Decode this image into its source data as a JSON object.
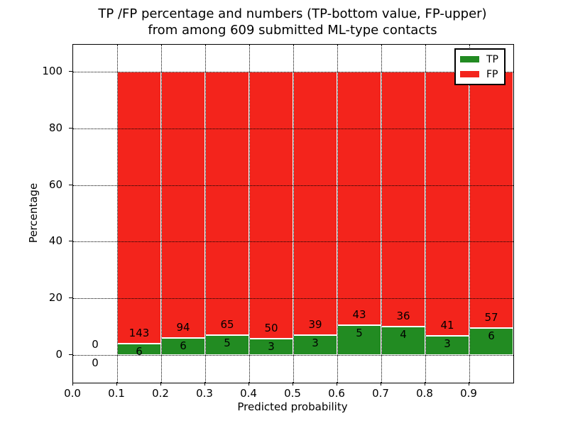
{
  "figure": {
    "title_line1": "TP /FP percentage and numbers (TP-bottom value, FP-upper)",
    "title_line2": "from among 609 submitted ML-type contacts",
    "xlabel": "Predicted probability",
    "ylabel": "Percentage"
  },
  "legend": {
    "items": [
      {
        "label": "TP",
        "color": "#228b22"
      },
      {
        "label": "FP",
        "color": "#f3241c"
      }
    ]
  },
  "colors": {
    "tp": "#228b22",
    "fp": "#f3241c",
    "bar_edge": "#ffffff",
    "grid": "#000000",
    "text": "#000000",
    "background": "#ffffff"
  },
  "chart_data": {
    "type": "bar",
    "stacked": true,
    "title": "TP /FP percentage and numbers (TP-bottom value, FP-upper) from among 609 submitted ML-type contacts",
    "xlabel": "Predicted probability",
    "ylabel": "Percentage",
    "xlim": [
      0.0,
      1.0
    ],
    "ylim": [
      -10,
      110
    ],
    "grid": true,
    "grid_style": "dotted",
    "legend_position": "upper right",
    "x_tick_labels": [
      "0.0",
      "0.1",
      "0.2",
      "0.3",
      "0.4",
      "0.5",
      "0.6",
      "0.7",
      "0.8",
      "0.9"
    ],
    "x_tick_positions": [
      0.0,
      0.1,
      0.2,
      0.3,
      0.4,
      0.5,
      0.6,
      0.7,
      0.8,
      0.9
    ],
    "y_ticks": [
      0,
      20,
      40,
      60,
      80,
      100
    ],
    "total_contacts": 609,
    "series": [
      {
        "name": "TP",
        "color": "#228b22",
        "counts": [
          0,
          6,
          6,
          5,
          3,
          3,
          5,
          4,
          3,
          6
        ]
      },
      {
        "name": "FP",
        "color": "#f3241c",
        "counts": [
          0,
          143,
          94,
          65,
          50,
          39,
          43,
          36,
          41,
          57
        ]
      }
    ],
    "bins": [
      {
        "x_range": [
          0.0,
          0.1
        ],
        "tp": 0,
        "fp": 0,
        "tp_pct": 0,
        "fp_pct": 0
      },
      {
        "x_range": [
          0.1,
          0.2
        ],
        "tp": 6,
        "fp": 143,
        "tp_pct": 4.03,
        "fp_pct": 95.97
      },
      {
        "x_range": [
          0.2,
          0.3
        ],
        "tp": 6,
        "fp": 94,
        "tp_pct": 6.0,
        "fp_pct": 94.0
      },
      {
        "x_range": [
          0.3,
          0.4
        ],
        "tp": 5,
        "fp": 65,
        "tp_pct": 7.14,
        "fp_pct": 92.86
      },
      {
        "x_range": [
          0.4,
          0.5
        ],
        "tp": 3,
        "fp": 50,
        "tp_pct": 5.66,
        "fp_pct": 94.34
      },
      {
        "x_range": [
          0.5,
          0.6
        ],
        "tp": 3,
        "fp": 39,
        "tp_pct": 7.14,
        "fp_pct": 92.86
      },
      {
        "x_range": [
          0.6,
          0.7
        ],
        "tp": 5,
        "fp": 43,
        "tp_pct": 10.42,
        "fp_pct": 89.58
      },
      {
        "x_range": [
          0.7,
          0.8
        ],
        "tp": 4,
        "fp": 36,
        "tp_pct": 10.0,
        "fp_pct": 90.0
      },
      {
        "x_range": [
          0.8,
          0.9
        ],
        "tp": 3,
        "fp": 41,
        "tp_pct": 6.82,
        "fp_pct": 93.18
      },
      {
        "x_range": [
          0.9,
          1.0
        ],
        "tp": 6,
        "fp": 57,
        "tp_pct": 9.52,
        "fp_pct": 90.48
      }
    ]
  }
}
